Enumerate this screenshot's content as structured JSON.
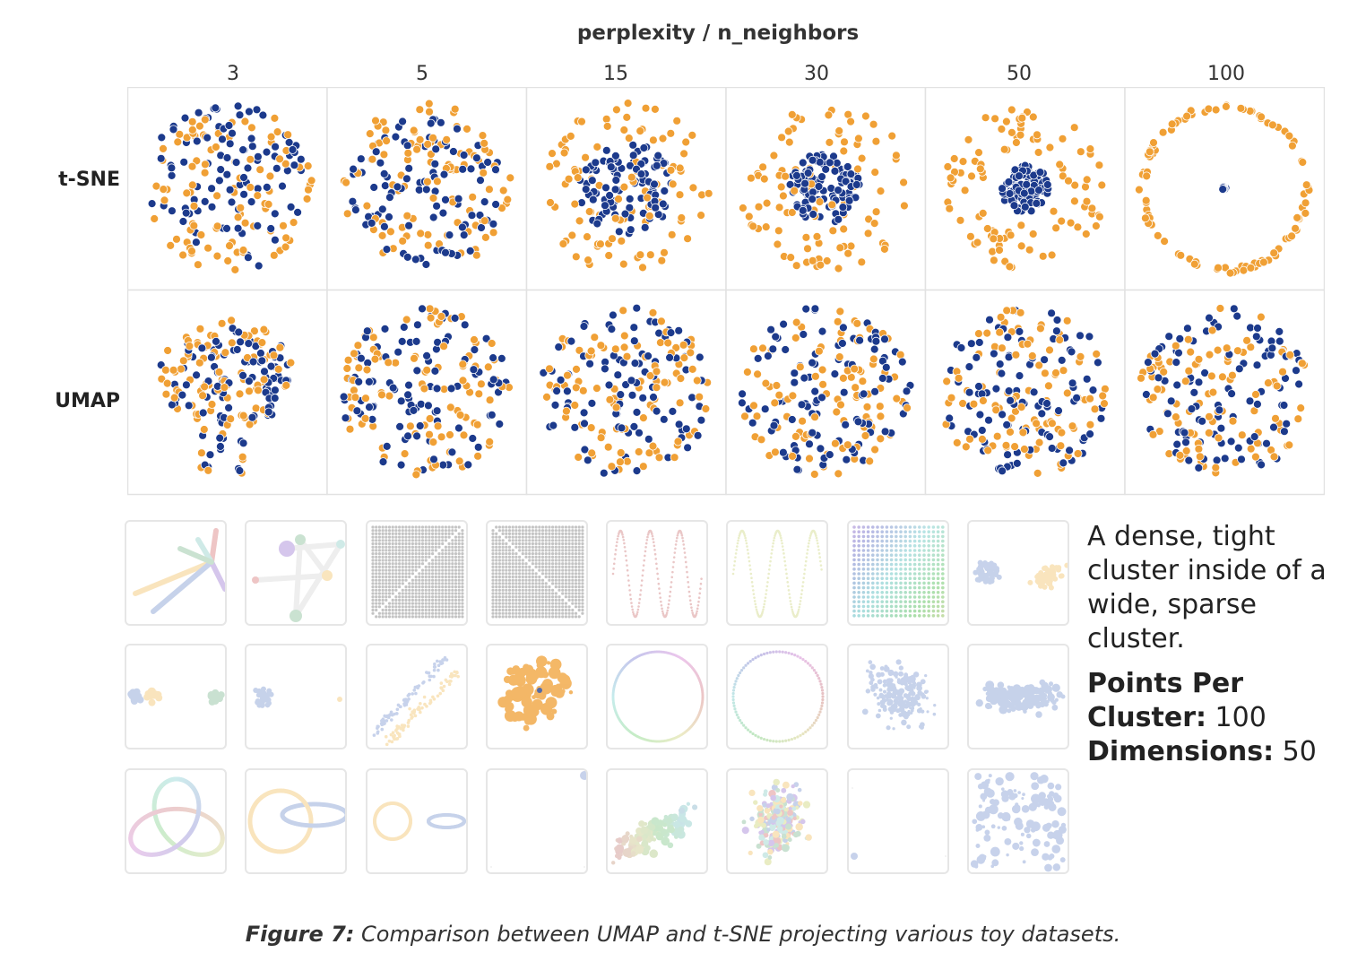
{
  "chart_data": {
    "type": "scatter",
    "title": "perplexity / n_neighbors",
    "columns": [
      "3",
      "5",
      "15",
      "30",
      "50",
      "100"
    ],
    "rows": [
      "t-SNE",
      "UMAP"
    ],
    "series_colors": {
      "sparse_cluster": "#f0a035",
      "dense_cluster": "#1c3a8c"
    },
    "grid": true
  },
  "datasets": {
    "selected": "dense-tight-cluster-inside-wide-sparse-cluster",
    "items": [
      "star",
      "linked-clusters",
      "grid-diagonal-up",
      "grid-diagonal-down",
      "sine-red",
      "sine-green",
      "gradient-grid",
      "two-clusters",
      "three-clusters",
      "unequal-clusters",
      "parallel-lines",
      "dense-in-sparse",
      "gradient-circle",
      "dotted-circle",
      "gaussian-blob",
      "elongated-blob",
      "trefoil-knot",
      "linked-rings",
      "unlinked-rings",
      "outlier-corner",
      "random-clusters",
      "colored-gaussians",
      "sparse-points",
      "random-walk"
    ]
  },
  "description": {
    "text": "A dense, tight cluster inside of a wide, sparse cluster.",
    "points_label": "Points Per Cluster:",
    "points_value": "100",
    "dims_label": "Dimensions:",
    "dims_value": "50"
  },
  "caption": {
    "label": "Figure 7:",
    "text": "Comparison between UMAP and t-SNE projecting various toy datasets."
  },
  "colors": {
    "selected_border": "#6b8db5",
    "panel_border": "#e2e2e2"
  }
}
